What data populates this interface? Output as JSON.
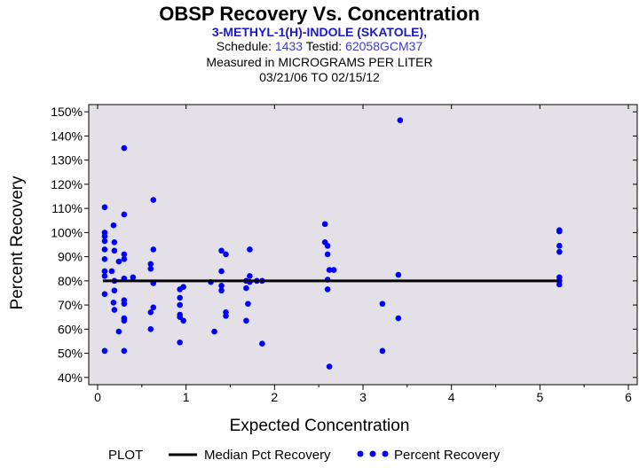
{
  "header": {
    "title": "OBSP Recovery Vs. Concentration",
    "subtitle": "3-METHYL-1(H)-INDOLE (SKATOLE),",
    "schedule_label": "Schedule:",
    "schedule_value": "1433",
    "testid_label": "Testid:",
    "testid_value": "62058GCM37",
    "measured": "Measured in  MICROGRAMS PER LITER",
    "date_range": "03/21/06 TO 02/15/12"
  },
  "legend": {
    "plot_label": "PLOT",
    "median_label": "Median Pct Recovery",
    "recovery_label": "Percent Recovery"
  },
  "colors": {
    "plot_background": "#e4e0e8",
    "point": "#0000ff",
    "median_line": "#000000"
  },
  "chart_data": {
    "type": "scatter",
    "xlabel": "Expected Concentration",
    "ylabel": "Percent Recovery",
    "xlim": [
      -0.1,
      6.1
    ],
    "ylim": [
      37,
      153
    ],
    "xticks": [
      0,
      1,
      2,
      3,
      4,
      5,
      6
    ],
    "yticks": [
      40,
      50,
      60,
      70,
      80,
      90,
      100,
      110,
      120,
      130,
      140,
      150
    ],
    "ytick_suffix": "%",
    "median": {
      "name": "Median Pct Recovery",
      "value": 80,
      "x_range": [
        0.06,
        5.22
      ]
    },
    "series": [
      {
        "name": "Percent Recovery",
        "points": [
          [
            0.08,
            110.5
          ],
          [
            0.08,
            100
          ],
          [
            0.08,
            98.5
          ],
          [
            0.08,
            96.5
          ],
          [
            0.08,
            93
          ],
          [
            0.08,
            89
          ],
          [
            0.08,
            84
          ],
          [
            0.08,
            82
          ],
          [
            0.08,
            74.5
          ],
          [
            0.08,
            51
          ],
          [
            0.16,
            84
          ],
          [
            0.18,
            103
          ],
          [
            0.19,
            96
          ],
          [
            0.19,
            92.5
          ],
          [
            0.19,
            80
          ],
          [
            0.19,
            76
          ],
          [
            0.18,
            71
          ],
          [
            0.19,
            68
          ],
          [
            0.24,
            88
          ],
          [
            0.24,
            59
          ],
          [
            0.3,
            135
          ],
          [
            0.3,
            107.5
          ],
          [
            0.3,
            91
          ],
          [
            0.3,
            89
          ],
          [
            0.3,
            81
          ],
          [
            0.3,
            72
          ],
          [
            0.3,
            70.5
          ],
          [
            0.3,
            64.5
          ],
          [
            0.3,
            63.5
          ],
          [
            0.3,
            51
          ],
          [
            0.4,
            81.5
          ],
          [
            0.6,
            87
          ],
          [
            0.6,
            85
          ],
          [
            0.6,
            67
          ],
          [
            0.6,
            60
          ],
          [
            0.63,
            113.5
          ],
          [
            0.63,
            93
          ],
          [
            0.63,
            79
          ],
          [
            0.63,
            69
          ],
          [
            0.93,
            76.5
          ],
          [
            0.93,
            73
          ],
          [
            0.93,
            70
          ],
          [
            0.93,
            66
          ],
          [
            0.93,
            65
          ],
          [
            0.93,
            54.5
          ],
          [
            0.97,
            77.5
          ],
          [
            0.97,
            63.5
          ],
          [
            1.28,
            79.5
          ],
          [
            1.32,
            59
          ],
          [
            1.4,
            92.5
          ],
          [
            1.4,
            84
          ],
          [
            1.4,
            78
          ],
          [
            1.4,
            76
          ],
          [
            1.45,
            91
          ],
          [
            1.45,
            67
          ],
          [
            1.45,
            65.5
          ],
          [
            1.68,
            80
          ],
          [
            1.68,
            77
          ],
          [
            1.68,
            63.5
          ],
          [
            1.7,
            70.5
          ],
          [
            1.72,
            93
          ],
          [
            1.72,
            82
          ],
          [
            1.72,
            79.5
          ],
          [
            1.8,
            80
          ],
          [
            1.86,
            80
          ],
          [
            1.86,
            54
          ],
          [
            2.57,
            103.5
          ],
          [
            2.57,
            96
          ],
          [
            2.6,
            94.5
          ],
          [
            2.6,
            91
          ],
          [
            2.6,
            80.5
          ],
          [
            2.6,
            76.5
          ],
          [
            2.62,
            84.5
          ],
          [
            2.62,
            44.5
          ],
          [
            2.67,
            84.5
          ],
          [
            3.22,
            70.5
          ],
          [
            3.22,
            51
          ],
          [
            3.4,
            82.5
          ],
          [
            3.4,
            64.5
          ],
          [
            3.42,
            146.5
          ],
          [
            5.22,
            101
          ],
          [
            5.22,
            100.5
          ],
          [
            5.22,
            94.5
          ],
          [
            5.22,
            92
          ],
          [
            5.22,
            81.5
          ],
          [
            5.22,
            80
          ],
          [
            5.22,
            78.5
          ]
        ]
      }
    ]
  }
}
